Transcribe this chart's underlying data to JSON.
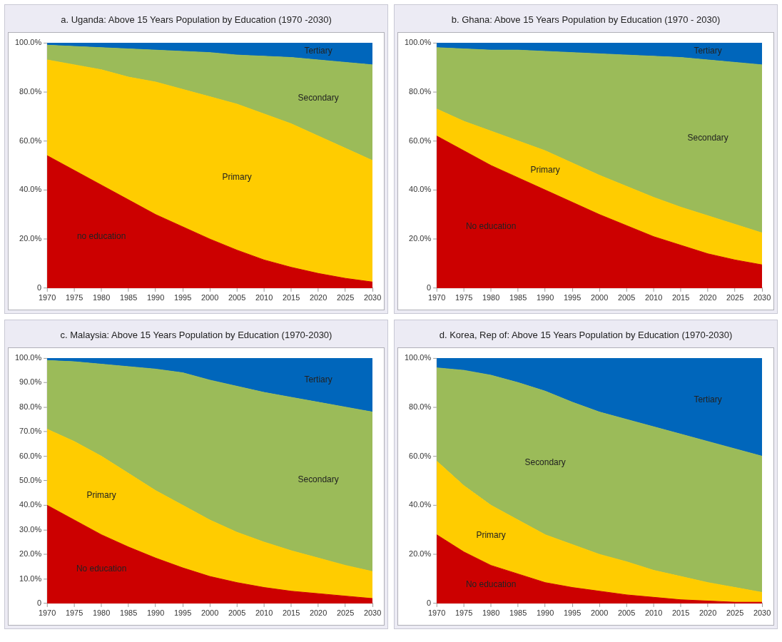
{
  "chart_data": [
    {
      "type": "area",
      "stacked": true,
      "legend": false,
      "title": "a. Uganda: Above 15 Years Population by Education (1970 -2030)",
      "x": [
        1970,
        1975,
        1980,
        1985,
        1990,
        1995,
        2000,
        2005,
        2010,
        2015,
        2020,
        2025,
        2030
      ],
      "xlim": [
        1970,
        2030
      ],
      "xticks": [
        1970,
        1975,
        1980,
        1985,
        1990,
        1995,
        2000,
        2005,
        2010,
        2015,
        2020,
        2025,
        2030
      ],
      "ylim": [
        0,
        100
      ],
      "yticks": [
        {
          "value": 0,
          "label": "0"
        },
        {
          "value": 20,
          "label": "20.0%"
        },
        {
          "value": 40,
          "label": "40.0%"
        },
        {
          "value": 60,
          "label": "60.0%"
        },
        {
          "value": 80,
          "label": "80.0%"
        },
        {
          "value": 100,
          "label": "100.0%"
        }
      ],
      "series": [
        {
          "name": "no education",
          "color": "#cc0000",
          "values": [
            54,
            48,
            42,
            36,
            30,
            25,
            20,
            15.5,
            11.5,
            8.5,
            6,
            4,
            2.5
          ]
        },
        {
          "name": "Primary",
          "color": "#ffcc00",
          "values": [
            39,
            43,
            47,
            50,
            54,
            56,
            58,
            59.5,
            59.5,
            58.5,
            56,
            53,
            49.5
          ]
        },
        {
          "name": "Secondary",
          "color": "#9bbb59",
          "values": [
            6,
            7.5,
            9,
            11.5,
            13,
            15.5,
            18,
            20,
            23.5,
            27,
            31,
            35,
            39
          ]
        },
        {
          "name": "Tertiary",
          "color": "#0066bb",
          "values": [
            1,
            1.5,
            2,
            2.5,
            3,
            3.5,
            4,
            5,
            5.5,
            6,
            7,
            8,
            9
          ]
        }
      ]
    },
    {
      "type": "area",
      "stacked": true,
      "legend": false,
      "title": "b. Ghana: Above 15 Years Population by Education (1970 - 2030)",
      "x": [
        1970,
        1975,
        1980,
        1985,
        1990,
        1995,
        2000,
        2005,
        2010,
        2015,
        2020,
        2025,
        2030
      ],
      "xlim": [
        1970,
        2030
      ],
      "xticks": [
        1970,
        1975,
        1980,
        1985,
        1990,
        1995,
        2000,
        2005,
        2010,
        2015,
        2020,
        2025,
        2030
      ],
      "ylim": [
        0,
        100
      ],
      "yticks": [
        {
          "value": 0,
          "label": "0"
        },
        {
          "value": 20,
          "label": "20.0%"
        },
        {
          "value": 40,
          "label": "40.0%"
        },
        {
          "value": 60,
          "label": "60.0%"
        },
        {
          "value": 80,
          "label": "80.0%"
        },
        {
          "value": 100,
          "label": "100.0%"
        }
      ],
      "series": [
        {
          "name": "No education",
          "color": "#cc0000",
          "values": [
            62,
            56,
            50,
            45,
            40,
            35,
            30,
            25.5,
            21,
            17.5,
            14,
            11.5,
            9.5
          ]
        },
        {
          "name": "Primary",
          "color": "#ffcc00",
          "values": [
            11,
            12,
            14,
            15,
            16,
            16,
            16,
            16,
            16,
            15.5,
            15.5,
            14.5,
            13
          ]
        },
        {
          "name": "Secondary",
          "color": "#9bbb59",
          "values": [
            25,
            29.5,
            33,
            37,
            40.5,
            45,
            49.5,
            53.5,
            57.5,
            61,
            63.5,
            66,
            68.5
          ]
        },
        {
          "name": "Tertiary",
          "color": "#0066bb",
          "values": [
            2,
            2.5,
            3,
            3,
            3.5,
            4,
            4.5,
            5,
            5.5,
            6,
            7,
            8,
            9
          ]
        }
      ]
    },
    {
      "type": "area",
      "stacked": true,
      "legend": false,
      "title": "c. Malaysia: Above 15 Years Population by Education (1970-2030)",
      "x": [
        1970,
        1975,
        1980,
        1985,
        1990,
        1995,
        2000,
        2005,
        2010,
        2015,
        2020,
        2025,
        2030
      ],
      "xlim": [
        1970,
        2030
      ],
      "xticks": [
        1970,
        1975,
        1980,
        1985,
        1990,
        1995,
        2000,
        2005,
        2010,
        2015,
        2020,
        2025,
        2030
      ],
      "ylim": [
        0,
        100
      ],
      "yticks": [
        {
          "value": 0,
          "label": "0"
        },
        {
          "value": 10,
          "label": "10.0%"
        },
        {
          "value": 20,
          "label": "20.0%"
        },
        {
          "value": 30,
          "label": "30.0%"
        },
        {
          "value": 40,
          "label": "40.0%"
        },
        {
          "value": 50,
          "label": "50.0%"
        },
        {
          "value": 60,
          "label": "60.0%"
        },
        {
          "value": 70,
          "label": "70.0%"
        },
        {
          "value": 80,
          "label": "80.0%"
        },
        {
          "value": 90,
          "label": "90.0%"
        },
        {
          "value": 100,
          "label": "100.0%"
        }
      ],
      "series": [
        {
          "name": "No education",
          "color": "#cc0000",
          "values": [
            40,
            34,
            28,
            23,
            18.5,
            14.5,
            11,
            8.5,
            6.5,
            5,
            4,
            3,
            2
          ]
        },
        {
          "name": "Primary",
          "color": "#ffcc00",
          "values": [
            31,
            32,
            32,
            30,
            27.5,
            25.5,
            23,
            20.5,
            18.5,
            16.5,
            14.5,
            12.5,
            11
          ]
        },
        {
          "name": "Secondary",
          "color": "#9bbb59",
          "values": [
            28,
            32.5,
            37.5,
            43.5,
            49.5,
            54,
            57,
            59.5,
            61,
            62.5,
            63.5,
            64.5,
            65
          ]
        },
        {
          "name": "Tertiary",
          "color": "#0066bb",
          "values": [
            1,
            1.5,
            2.5,
            3.5,
            4.5,
            6,
            9,
            11.5,
            14,
            16,
            18,
            20,
            22
          ]
        }
      ]
    },
    {
      "type": "area",
      "stacked": true,
      "legend": false,
      "title": "d. Korea, Rep of: Above 15 Years Population by Education (1970-2030)",
      "x": [
        1970,
        1975,
        1980,
        1985,
        1990,
        1995,
        2000,
        2005,
        2010,
        2015,
        2020,
        2025,
        2030
      ],
      "xlim": [
        1970,
        2030
      ],
      "xticks": [
        1970,
        1975,
        1980,
        1985,
        1990,
        1995,
        2000,
        2005,
        2010,
        2015,
        2020,
        2025,
        2030
      ],
      "ylim": [
        0,
        100
      ],
      "yticks": [
        {
          "value": 0,
          "label": "0"
        },
        {
          "value": 20,
          "label": "20.0%"
        },
        {
          "value": 40,
          "label": "40.0%"
        },
        {
          "value": 60,
          "label": "60.0%"
        },
        {
          "value": 80,
          "label": "80.0%"
        },
        {
          "value": 100,
          "label": "100.0%"
        }
      ],
      "series": [
        {
          "name": "No education",
          "color": "#cc0000",
          "values": [
            28,
            21,
            15.5,
            12,
            8.5,
            6.5,
            5,
            3.5,
            2.5,
            1.5,
            1,
            0.5,
            0.5
          ]
        },
        {
          "name": "Primary",
          "color": "#ffcc00",
          "values": [
            30,
            27,
            24.5,
            22,
            19.5,
            17.5,
            15,
            13.5,
            11,
            9.5,
            7.5,
            6,
            4
          ]
        },
        {
          "name": "Secondary",
          "color": "#9bbb59",
          "values": [
            38,
            47,
            53,
            56,
            58.5,
            58,
            58,
            58,
            58.5,
            58,
            57.5,
            56.5,
            55.5
          ]
        },
        {
          "name": "Tertiary",
          "color": "#0066bb",
          "values": [
            4,
            5,
            7,
            10,
            13.5,
            18,
            22,
            25,
            28,
            31,
            34,
            37,
            40
          ]
        }
      ]
    }
  ]
}
